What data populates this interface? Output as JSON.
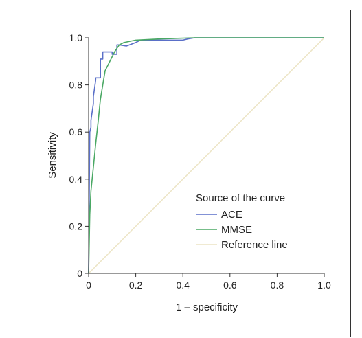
{
  "chart_data": {
    "type": "line",
    "title": "",
    "xlabel": "1 – specificity",
    "ylabel": "Sensitivity",
    "xlim": [
      0,
      1
    ],
    "ylim": [
      0,
      1
    ],
    "x_ticks": [
      "0",
      "0.2",
      "0.4",
      "0.6",
      "0.8",
      "1.0"
    ],
    "y_ticks": [
      "0",
      "0.2",
      "0.4",
      "0.6",
      "0.8",
      "1.0"
    ],
    "grid": false,
    "legend": {
      "title": "Source of the curve",
      "placement": "bottom-right",
      "entries": [
        "ACE",
        "MMSE",
        "Reference line"
      ]
    },
    "series": [
      {
        "name": "ACE",
        "color": "#5a6fc8",
        "x": [
          0,
          0.005,
          0.01,
          0.01,
          0.02,
          0.02,
          0.03,
          0.03,
          0.05,
          0.05,
          0.06,
          0.06,
          0.1,
          0.1,
          0.12,
          0.12,
          0.13,
          0.16,
          0.2,
          0.22,
          0.25,
          0.3,
          0.4,
          0.42,
          0.45,
          0.6,
          1.0
        ],
        "y": [
          0,
          0.6,
          0.62,
          0.65,
          0.72,
          0.75,
          0.82,
          0.83,
          0.83,
          0.91,
          0.91,
          0.94,
          0.94,
          0.93,
          0.93,
          0.97,
          0.97,
          0.965,
          0.98,
          0.99,
          0.99,
          0.99,
          0.99,
          0.995,
          1.0,
          1.0,
          1.0
        ]
      },
      {
        "name": "MMSE",
        "color": "#4aa864",
        "x": [
          0,
          0.005,
          0.01,
          0.02,
          0.03,
          0.04,
          0.05,
          0.06,
          0.07,
          0.09,
          0.11,
          0.13,
          0.15,
          0.2,
          0.3,
          0.45,
          0.6,
          1.0
        ],
        "y": [
          0,
          0.25,
          0.35,
          0.45,
          0.55,
          0.64,
          0.74,
          0.8,
          0.86,
          0.9,
          0.94,
          0.97,
          0.98,
          0.99,
          0.995,
          1.0,
          1.0,
          1.0
        ]
      },
      {
        "name": "Reference line",
        "color": "#ece4c4",
        "x": [
          0,
          1
        ],
        "y": [
          0,
          1
        ]
      }
    ]
  }
}
